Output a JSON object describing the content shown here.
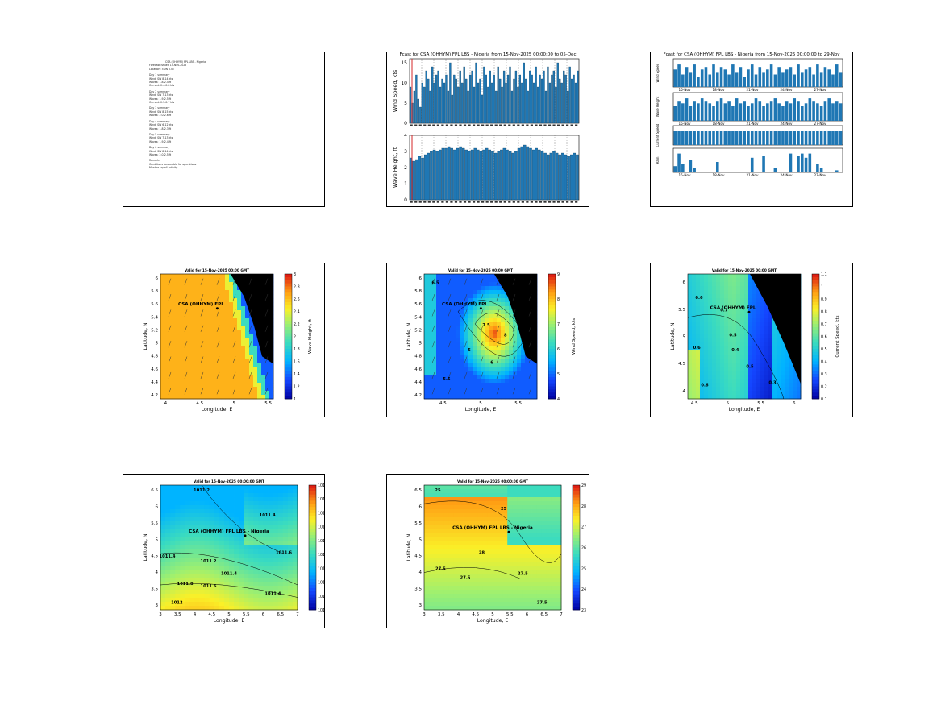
{
  "colors": {
    "bar": "#1f77b4",
    "land": "#000000",
    "marker_line": "#d62728"
  },
  "report": {
    "rows": [
      "CSA (OHHYM) FPL LBS - Nigeria",
      "Forecast issued 15-Nov-2025",
      "Location: 5.0N 5.0E",
      "Day 1 summary",
      "Wind: SW 8-14 kts",
      "Waves: 1.8-2.4 ft",
      "Current: 0.4-0.8 kts",
      "Day 2 summary",
      "Wind: SW 7-13 kts",
      "Waves: 1.9-2.5 ft",
      "Current: 0.3-0.7 kts",
      "Day 3 summary",
      "Wind: SW 8-15 kts",
      "Waves: 2.0-2.6 ft",
      "Day 4 summary",
      "Wind: SW 6-12 kts",
      "Waves: 1.8-2.3 ft",
      "Day 5 summary",
      "Wind: SW 7-13 kts",
      "Waves: 1.9-2.4 ft",
      "Day 6 summary",
      "Wind: SW 8-14 kts",
      "Waves: 2.0-2.5 ft",
      "Remarks",
      "Conditions favourable for operations",
      "Monitor squall activity"
    ]
  },
  "chart_data": [
    {
      "type": "bar",
      "title": "Fcast for CSA (OHHYM) FPL LBS - Nigeria from 15-Nov-2025 00:00:00 to 05-Dec",
      "panels": [
        {
          "ylabel": "Wind Speed, kts",
          "ylim": [
            0,
            16
          ],
          "yticks": [
            "0",
            "5",
            "10",
            "15"
          ],
          "values": [
            9,
            5,
            8,
            12,
            6,
            4,
            10,
            9,
            13,
            11,
            8,
            14,
            10,
            12,
            13,
            9,
            11,
            10,
            12,
            8,
            15,
            7,
            12,
            11,
            9,
            13,
            10,
            14,
            11,
            8,
            12,
            13,
            9,
            15,
            10,
            11,
            7,
            14,
            12,
            9,
            13,
            10,
            12,
            8,
            14,
            11,
            9,
            13,
            10,
            12,
            14,
            8,
            11,
            13,
            9,
            12,
            10,
            15,
            11,
            8,
            13,
            12,
            10,
            14,
            9,
            12,
            11,
            13,
            8,
            14,
            10,
            12,
            13,
            9,
            15,
            11,
            10,
            13,
            12,
            8,
            14,
            11,
            12,
            10,
            13
          ]
        },
        {
          "ylabel": "Wave Height, ft",
          "ylim": [
            0,
            4
          ],
          "yticks": [
            "0",
            "1",
            "2",
            "3",
            "4"
          ],
          "values": [
            2.6,
            2.4,
            2.5,
            2.7,
            2.6,
            2.8,
            2.9,
            3.0,
            3.1,
            3.0,
            3.1,
            3.2,
            3.2,
            3.3,
            3.2,
            3.1,
            3.2,
            3.3,
            3.2,
            3.1,
            3.0,
            3.1,
            3.2,
            3.1,
            3.0,
            3.1,
            3.2,
            3.1,
            3.0,
            2.9,
            3.0,
            3.1,
            3.2,
            3.1,
            3.0,
            2.9,
            3.0,
            3.2,
            3.3,
            3.4,
            3.3,
            3.2,
            3.1,
            3.2,
            3.1,
            3.0,
            2.9,
            2.8,
            2.9,
            3.0,
            2.9,
            2.8,
            2.9,
            2.8,
            2.7,
            2.8,
            2.9,
            2.8
          ]
        }
      ]
    },
    {
      "type": "bar",
      "title": "Fcast for CSA (OHHYM) FPL LBS - Nigeria from 15-Nov-2025 00:00:00 to 29-Nov",
      "panels": [
        {
          "ylabel": "Wind Speed",
          "values": [
            7,
            9,
            5,
            8,
            6,
            9,
            4,
            7,
            8,
            5,
            9,
            6,
            8,
            7,
            5,
            9,
            6,
            8,
            4,
            7,
            9,
            5,
            8,
            6,
            7,
            9,
            5,
            8,
            6,
            7,
            8,
            5,
            9,
            6,
            7,
            8,
            5,
            9,
            6,
            8,
            7,
            5,
            9,
            6
          ]
        },
        {
          "ylabel": "Wave Height",
          "values": [
            6,
            8,
            7,
            9,
            6,
            8,
            7,
            9,
            8,
            7,
            6,
            8,
            9,
            7,
            8,
            6,
            9,
            7,
            8,
            6,
            7,
            9,
            8,
            6,
            7,
            8,
            9,
            7,
            6,
            8,
            7,
            9,
            8,
            6,
            7,
            9,
            8,
            7,
            6,
            8,
            9,
            7,
            8,
            7
          ]
        },
        {
          "ylabel": "Current Speed",
          "values": [
            9,
            9,
            9,
            9,
            9,
            9,
            9,
            9,
            9,
            9,
            9,
            9,
            9,
            9,
            9,
            9,
            9,
            9,
            9,
            9,
            9,
            9,
            9,
            9,
            9,
            9,
            9,
            9,
            9,
            9,
            9,
            9,
            9,
            9,
            9,
            9,
            9,
            9,
            9,
            9,
            9,
            9,
            9,
            9
          ]
        },
        {
          "ylabel": "Rain",
          "values": [
            3,
            9,
            4,
            0,
            6,
            2,
            0,
            0,
            0,
            0,
            0,
            5,
            0,
            0,
            0,
            0,
            0,
            0,
            0,
            0,
            7,
            0,
            0,
            8,
            0,
            0,
            2,
            0,
            0,
            0,
            9,
            0,
            8,
            9,
            7,
            9,
            0,
            4,
            2,
            0,
            0,
            0,
            1,
            0
          ]
        }
      ],
      "date_labels": [
        "15-Nov",
        "18-Nov",
        "21-Nov",
        "24-Nov",
        "27-Nov"
      ]
    },
    {
      "type": "heatmap",
      "title": "Valid for 15-Nov-2025 00:00 GMT",
      "xlabel": "Longitude, E",
      "ylabel": "Latitude, N",
      "colorbar_label": "Wave Height, ft",
      "xticks": [
        "4",
        "4.5",
        "5",
        "5.5"
      ],
      "yticks": [
        "4.2",
        "4.4",
        "4.6",
        "4.8",
        "5",
        "5.2",
        "5.4",
        "5.6",
        "5.8",
        "6"
      ],
      "cbar_ticks": [
        "1",
        "1.2",
        "1.4",
        "1.6",
        "1.8",
        "2",
        "2.2",
        "2.4",
        "2.6",
        "2.8",
        "3"
      ],
      "site_label": "CSA (OHHYM) FPL"
    },
    {
      "type": "heatmap",
      "title": "Valid for 15-Nov-2025 00:00 GMT",
      "xlabel": "Longitude, E",
      "ylabel": "Latitude, N",
      "colorbar_label": "Wind Speed, kts",
      "xticks": [
        "4.5",
        "5",
        "5.5"
      ],
      "yticks": [
        "4.2",
        "4.4",
        "4.6",
        "4.8",
        "5",
        "5.2",
        "5.4",
        "5.6",
        "5.8",
        "6"
      ],
      "cbar_ticks": [
        "4",
        "5",
        "6",
        "7",
        "8",
        "9"
      ],
      "site_label": "CSA (OHHYM) FPL",
      "contour_labels": [
        "6.5",
        "7.5",
        "8",
        "6",
        "5.5",
        "6",
        "5"
      ]
    },
    {
      "type": "heatmap",
      "title": "Valid for 15-Nov-2025 00:00 GMT",
      "xlabel": "Longitude, E",
      "ylabel": "Latitude, N",
      "colorbar_label": "Current Speed, kts",
      "xticks": [
        "4.5",
        "5",
        "5.5",
        "6"
      ],
      "yticks": [
        "4",
        "4.5",
        "5",
        "5.5",
        "6"
      ],
      "cbar_ticks": [
        "0.1",
        "0.2",
        "0.3",
        "0.4",
        "0.5",
        "0.6",
        "0.7",
        "0.8",
        "0.9",
        "1",
        "1.1"
      ],
      "site_label": "CSA (OHHYM) FPL",
      "contour_labels": [
        "0.6",
        "0.7",
        "0.5",
        "0.6",
        "0.4",
        "0.5",
        "0.3",
        "0.6"
      ]
    },
    {
      "type": "heatmap",
      "title": "Valid for 15-Nov-2025 00:00:00 GMT",
      "xlabel": "Longitude, E",
      "ylabel": "Latitude, N",
      "colorbar_label": "Surface Pressure, mb",
      "xticks": [
        "3",
        "3.5",
        "4",
        "4.5",
        "5",
        "5.5",
        "6",
        "6.5",
        "7"
      ],
      "yticks": [
        "3",
        "3.5",
        "4",
        "4.5",
        "5",
        "5.5",
        "6",
        "6.5"
      ],
      "cbar_ticks": [
        "1010.4",
        "1010.6",
        "1010.8",
        "1011",
        "1011.2",
        "1011.4",
        "1011.6",
        "1011.8",
        "1012",
        "1012.2"
      ],
      "site_label": "CSA (OHHYM) FPL LBS - Nigeria",
      "contour_labels": [
        "1011.2",
        "1011.4",
        "1011.4",
        "1011.2",
        "1011.4",
        "1011.8",
        "1011.6",
        "1011.4",
        "1011.6",
        "1012"
      ]
    },
    {
      "type": "heatmap",
      "title": "Valid for 15-Nov-2025 00:00:00 GMT",
      "xlabel": "Longitude, E",
      "ylabel": "Latitude, N",
      "colorbar_label": "Air Temperature, C",
      "xticks": [
        "3",
        "3.5",
        "4",
        "4.5",
        "5",
        "5.5",
        "6",
        "6.5",
        "7"
      ],
      "yticks": [
        "3",
        "3.5",
        "4",
        "4.5",
        "5",
        "5.5",
        "6",
        "6.5"
      ],
      "cbar_ticks": [
        "23",
        "24",
        "25",
        "26",
        "27",
        "28",
        "29"
      ],
      "site_label": "CSA (OHHYM) FPL LBS - Nigeria",
      "contour_labels": [
        "25",
        "25",
        "28",
        "27.5",
        "27.5",
        "27.5",
        "27.5"
      ]
    }
  ]
}
